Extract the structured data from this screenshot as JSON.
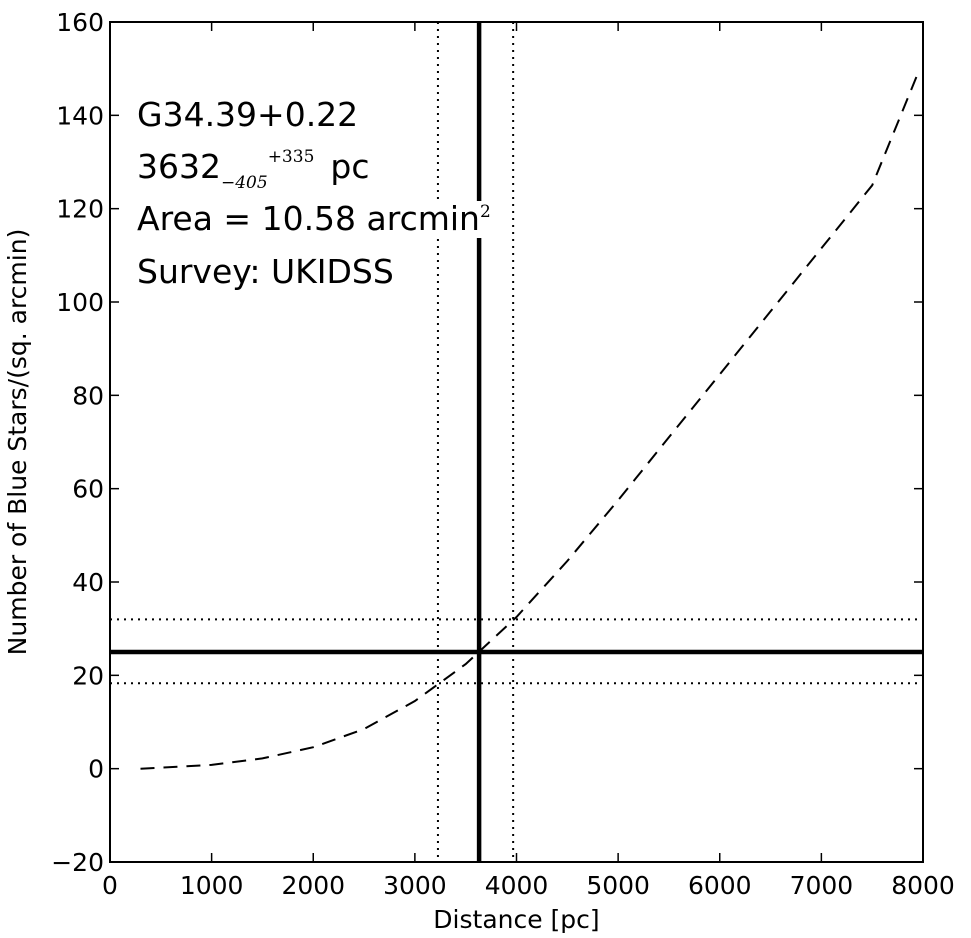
{
  "chart_data": {
    "type": "line",
    "title": "",
    "xlabel": "Distance [pc]",
    "ylabel": "Number of Blue Stars/(sq. arcmin)",
    "xlim": [
      0,
      8000
    ],
    "ylim": [
      -20,
      160
    ],
    "x_ticks": [
      0,
      1000,
      2000,
      3000,
      4000,
      5000,
      6000,
      7000,
      8000
    ],
    "x_tick_labels": [
      "0",
      "1000",
      "2000",
      "3000",
      "4000",
      "5000",
      "6000",
      "7000",
      "8000"
    ],
    "y_ticks": [
      -20,
      0,
      20,
      40,
      60,
      80,
      100,
      120,
      140,
      160
    ],
    "y_tick_labels": [
      "−20",
      "0",
      "20",
      "40",
      "60",
      "80",
      "100",
      "120",
      "140",
      "160"
    ],
    "grid": false,
    "series": [
      {
        "style": "dashed",
        "x": [
          300,
          500,
          1000,
          1500,
          2000,
          2500,
          3000,
          3500,
          4000,
          4500,
          5000,
          5500,
          6000,
          6500,
          7000,
          7500,
          7950
        ],
        "y": [
          0,
          0.2,
          0.8,
          2.2,
          4.6,
          8.5,
          14.5,
          22.4,
          32.5,
          44.5,
          57.5,
          71,
          84.5,
          98,
          111.5,
          125,
          149
        ]
      }
    ],
    "reference_lines": {
      "vertical_solid": 3632,
      "vertical_dotted": [
        3227,
        3967
      ],
      "horizontal_solid": 25,
      "horizontal_dotted": [
        18.3,
        32
      ]
    },
    "annotations": {
      "field_name": "G34.39+0.22",
      "distance_value": "3632",
      "distance_lower": "−405",
      "distance_upper": "+335",
      "distance_unit": "pc",
      "area_text": "Area = 10.58 arcmin",
      "area_exponent": "2",
      "survey_text": "Survey: UKIDSS"
    }
  }
}
